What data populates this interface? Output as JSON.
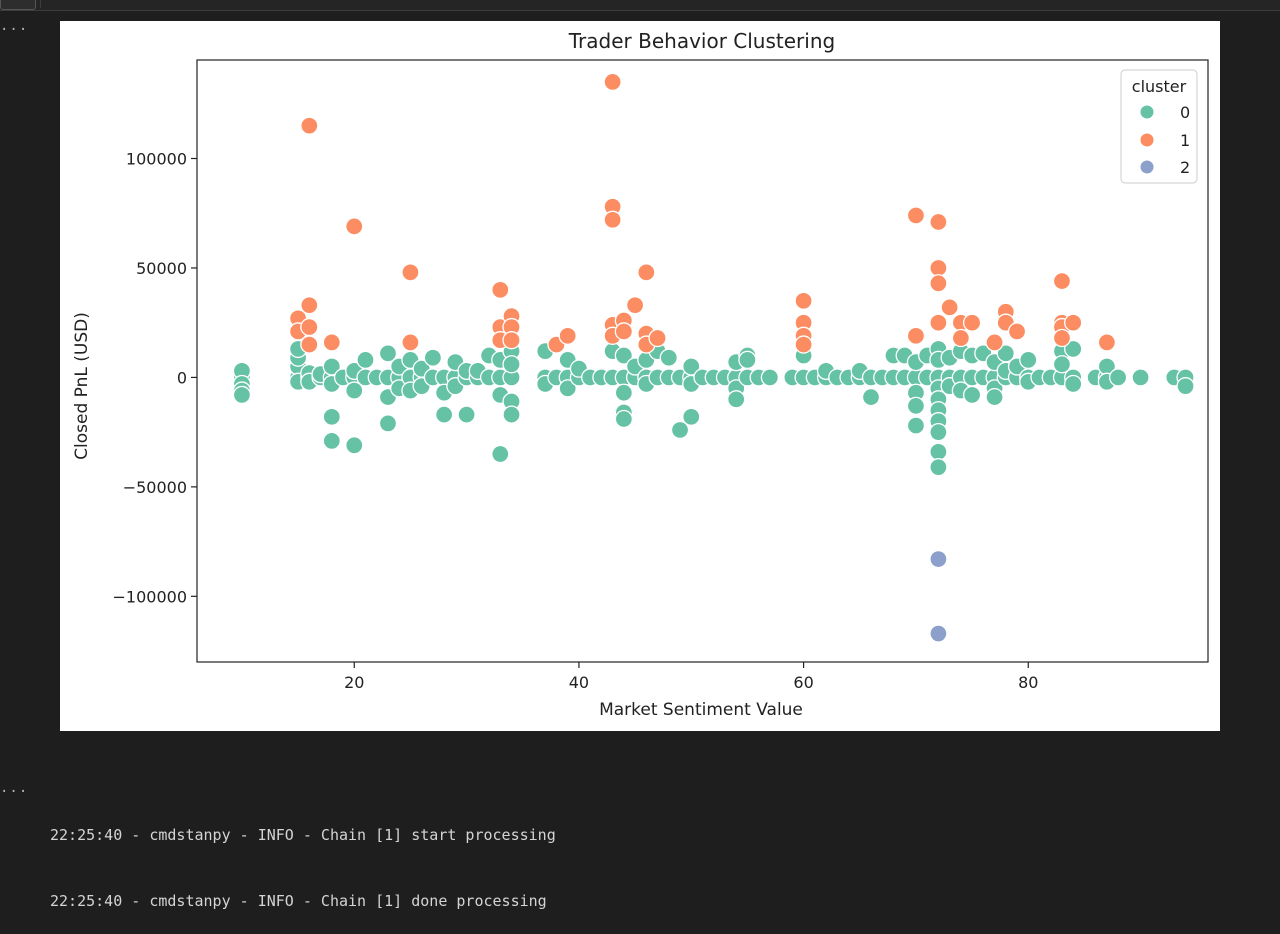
{
  "output": {
    "menu_glyph": "...",
    "log_lines": [
      "22:25:40 - cmdstanpy - INFO - Chain [1] start processing",
      "22:25:40 - cmdstanpy - INFO - Chain [1] done processing"
    ]
  },
  "colors": {
    "cluster_0": "#66c2a5",
    "cluster_1": "#fc8d62",
    "cluster_2": "#8da0cb",
    "background": "#1e1e1e",
    "figure_bg": "#ffffff"
  },
  "chart_data": {
    "type": "scatter",
    "title": "Trader Behavior Clustering",
    "xlabel": "Market Sentiment Value",
    "ylabel": "Closed PnL (USD)",
    "xlim": [
      6,
      96
    ],
    "ylim": [
      -130000,
      145000
    ],
    "xticks": [
      20,
      40,
      60,
      80
    ],
    "yticks": [
      -100000,
      -50000,
      0,
      50000,
      100000
    ],
    "xtick_labels": [
      "20",
      "40",
      "60",
      "80"
    ],
    "ytick_labels": [
      "−100000",
      "−50000",
      "0",
      "50000",
      "100000"
    ],
    "grid": false,
    "legend": {
      "title": "cluster",
      "position": "top-right",
      "entries": [
        "0",
        "1",
        "2"
      ]
    },
    "series": [
      {
        "name": "0",
        "points": [
          [
            10,
            0
          ],
          [
            10,
            3000
          ],
          [
            10,
            -3000
          ],
          [
            10,
            -6000
          ],
          [
            10,
            -8000
          ],
          [
            15,
            0
          ],
          [
            15,
            5000
          ],
          [
            15,
            9000
          ],
          [
            15,
            13000
          ],
          [
            15,
            -2000
          ],
          [
            16,
            0
          ],
          [
            16,
            2000
          ],
          [
            16,
            -2000
          ],
          [
            17,
            0
          ],
          [
            17,
            1500
          ],
          [
            18,
            0
          ],
          [
            18,
            5000
          ],
          [
            18,
            -18000
          ],
          [
            18,
            -29000
          ],
          [
            18,
            -3000
          ],
          [
            19,
            0
          ],
          [
            20,
            0
          ],
          [
            20,
            3000
          ],
          [
            20,
            -6000
          ],
          [
            20,
            -31000
          ],
          [
            21,
            8000
          ],
          [
            21,
            0
          ],
          [
            22,
            0
          ],
          [
            23,
            0
          ],
          [
            23,
            11000
          ],
          [
            23,
            -9000
          ],
          [
            23,
            -21000
          ],
          [
            24,
            0
          ],
          [
            24,
            5000
          ],
          [
            24,
            -5000
          ],
          [
            25,
            0
          ],
          [
            25,
            8000
          ],
          [
            25,
            -6000
          ],
          [
            26,
            0
          ],
          [
            26,
            4000
          ],
          [
            26,
            -4000
          ],
          [
            27,
            0
          ],
          [
            27,
            9000
          ],
          [
            28,
            0
          ],
          [
            28,
            -7000
          ],
          [
            28,
            -17000
          ],
          [
            29,
            0
          ],
          [
            29,
            7000
          ],
          [
            29,
            -4000
          ],
          [
            30,
            0
          ],
          [
            30,
            3000
          ],
          [
            30,
            -17000
          ],
          [
            31,
            0
          ],
          [
            31,
            3000
          ],
          [
            32,
            0
          ],
          [
            32,
            10000
          ],
          [
            33,
            0
          ],
          [
            33,
            8000
          ],
          [
            33,
            -8000
          ],
          [
            33,
            -35000
          ],
          [
            34,
            0
          ],
          [
            34,
            12000
          ],
          [
            34,
            -11000
          ],
          [
            34,
            -17000
          ],
          [
            34,
            6000
          ],
          [
            37,
            0
          ],
          [
            37,
            12000
          ],
          [
            37,
            -3000
          ],
          [
            38,
            0
          ],
          [
            39,
            0
          ],
          [
            39,
            8000
          ],
          [
            39,
            -5000
          ],
          [
            40,
            0
          ],
          [
            40,
            4000
          ],
          [
            41,
            0
          ],
          [
            42,
            0
          ],
          [
            43,
            0
          ],
          [
            43,
            12000
          ],
          [
            44,
            0
          ],
          [
            44,
            10000
          ],
          [
            44,
            -7000
          ],
          [
            44,
            -16000
          ],
          [
            44,
            -19000
          ],
          [
            45,
            0
          ],
          [
            45,
            5000
          ],
          [
            46,
            0
          ],
          [
            46,
            8000
          ],
          [
            46,
            -3000
          ],
          [
            47,
            0
          ],
          [
            47,
            12000
          ],
          [
            48,
            0
          ],
          [
            48,
            9000
          ],
          [
            49,
            0
          ],
          [
            49,
            -24000
          ],
          [
            50,
            0
          ],
          [
            50,
            5000
          ],
          [
            50,
            -3000
          ],
          [
            50,
            -18000
          ],
          [
            51,
            0
          ],
          [
            52,
            0
          ],
          [
            53,
            0
          ],
          [
            54,
            0
          ],
          [
            54,
            7000
          ],
          [
            54,
            -5000
          ],
          [
            54,
            -10000
          ],
          [
            55,
            0
          ],
          [
            55,
            10000
          ],
          [
            55,
            8000
          ],
          [
            56,
            0
          ],
          [
            57,
            0
          ],
          [
            59,
            0
          ],
          [
            60,
            0
          ],
          [
            60,
            10000
          ],
          [
            61,
            0
          ],
          [
            62,
            0
          ],
          [
            62,
            3000
          ],
          [
            63,
            0
          ],
          [
            64,
            0
          ],
          [
            65,
            0
          ],
          [
            65,
            3000
          ],
          [
            66,
            0
          ],
          [
            66,
            -9000
          ],
          [
            67,
            0
          ],
          [
            68,
            0
          ],
          [
            68,
            10000
          ],
          [
            69,
            0
          ],
          [
            69,
            10000
          ],
          [
            70,
            0
          ],
          [
            70,
            7000
          ],
          [
            70,
            -7000
          ],
          [
            70,
            -13000
          ],
          [
            70,
            -22000
          ],
          [
            71,
            0
          ],
          [
            71,
            10000
          ],
          [
            72,
            0
          ],
          [
            72,
            13000
          ],
          [
            72,
            8000
          ],
          [
            72,
            -5000
          ],
          [
            72,
            -10000
          ],
          [
            72,
            -15000
          ],
          [
            72,
            -20000
          ],
          [
            72,
            -25000
          ],
          [
            72,
            -34000
          ],
          [
            72,
            -41000
          ],
          [
            73,
            0
          ],
          [
            73,
            9000
          ],
          [
            73,
            -4000
          ],
          [
            74,
            0
          ],
          [
            74,
            12000
          ],
          [
            74,
            -6000
          ],
          [
            75,
            0
          ],
          [
            75,
            10000
          ],
          [
            75,
            -8000
          ],
          [
            76,
            0
          ],
          [
            76,
            11000
          ],
          [
            77,
            0
          ],
          [
            77,
            7000
          ],
          [
            77,
            -5000
          ],
          [
            77,
            -9000
          ],
          [
            78,
            0
          ],
          [
            78,
            11000
          ],
          [
            78,
            3000
          ],
          [
            79,
            0
          ],
          [
            79,
            5000
          ],
          [
            80,
            0
          ],
          [
            80,
            8000
          ],
          [
            80,
            -2000
          ],
          [
            81,
            0
          ],
          [
            82,
            0
          ],
          [
            83,
            0
          ],
          [
            83,
            12000
          ],
          [
            83,
            6000
          ],
          [
            84,
            0
          ],
          [
            84,
            13000
          ],
          [
            84,
            -3000
          ],
          [
            86,
            0
          ],
          [
            87,
            0
          ],
          [
            87,
            5000
          ],
          [
            87,
            -2000
          ],
          [
            88,
            0
          ],
          [
            90,
            0
          ],
          [
            93,
            0
          ],
          [
            94,
            0
          ],
          [
            94,
            -4000
          ]
        ]
      },
      {
        "name": "1",
        "points": [
          [
            15,
            27000
          ],
          [
            15,
            21000
          ],
          [
            16,
            115000
          ],
          [
            16,
            33000
          ],
          [
            16,
            23000
          ],
          [
            16,
            15000
          ],
          [
            18,
            16000
          ],
          [
            20,
            69000
          ],
          [
            25,
            48000
          ],
          [
            25,
            16000
          ],
          [
            33,
            40000
          ],
          [
            33,
            23000
          ],
          [
            33,
            17000
          ],
          [
            34,
            28000
          ],
          [
            34,
            23000
          ],
          [
            34,
            17000
          ],
          [
            38,
            15000
          ],
          [
            39,
            19000
          ],
          [
            43,
            135000
          ],
          [
            43,
            78000
          ],
          [
            43,
            72000
          ],
          [
            43,
            24000
          ],
          [
            43,
            19000
          ],
          [
            44,
            26000
          ],
          [
            44,
            21000
          ],
          [
            45,
            33000
          ],
          [
            46,
            48000
          ],
          [
            46,
            20000
          ],
          [
            46,
            15000
          ],
          [
            47,
            18000
          ],
          [
            60,
            35000
          ],
          [
            60,
            25000
          ],
          [
            60,
            19000
          ],
          [
            60,
            15000
          ],
          [
            70,
            74000
          ],
          [
            70,
            19000
          ],
          [
            72,
            71000
          ],
          [
            72,
            50000
          ],
          [
            72,
            43000
          ],
          [
            72,
            25000
          ],
          [
            73,
            32000
          ],
          [
            74,
            25000
          ],
          [
            74,
            18000
          ],
          [
            75,
            25000
          ],
          [
            77,
            16000
          ],
          [
            78,
            30000
          ],
          [
            78,
            25000
          ],
          [
            79,
            21000
          ],
          [
            83,
            44000
          ],
          [
            83,
            25000
          ],
          [
            83,
            23000
          ],
          [
            83,
            18000
          ],
          [
            84,
            25000
          ],
          [
            87,
            16000
          ]
        ]
      },
      {
        "name": "2",
        "points": [
          [
            72,
            -83000
          ],
          [
            72,
            -117000
          ]
        ]
      }
    ]
  }
}
